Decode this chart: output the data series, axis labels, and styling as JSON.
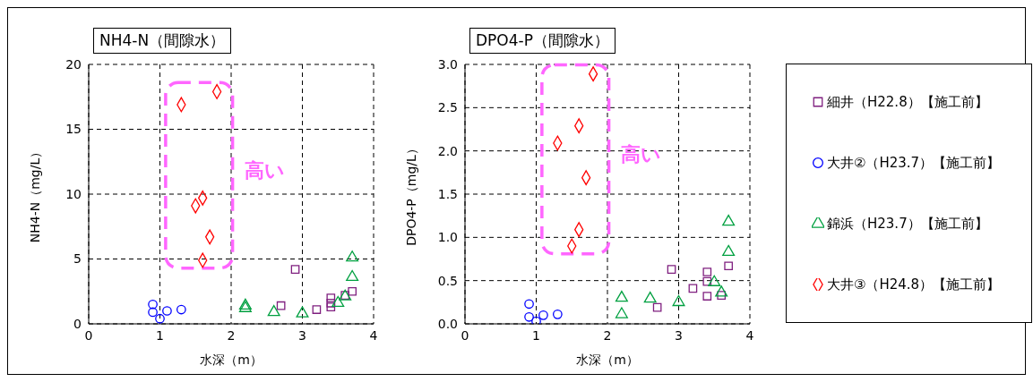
{
  "chart_data": [
    {
      "type": "scatter",
      "title": "NH4-N（間隙水）",
      "xlabel": "水深（m）",
      "ylabel": "NH4-N（mg/L）",
      "xlim": [
        0,
        4
      ],
      "xticks": [
        0,
        1,
        2,
        3,
        4
      ],
      "ylim": [
        0,
        20
      ],
      "yticks": [
        0,
        5,
        10,
        15,
        20
      ],
      "grid": true,
      "legend": false,
      "annotations": [
        "高い"
      ],
      "series": [
        {
          "color": "#7f1f7f",
          "marker": "square",
          "x": [
            2.9,
            2.7,
            3.2,
            3.4,
            3.4,
            3.4,
            3.6,
            3.7
          ],
          "values": [
            4.2,
            1.4,
            1.1,
            2.0,
            1.6,
            1.3,
            2.2,
            2.5
          ]
        },
        {
          "color": "#0000ff",
          "marker": "circle",
          "x": [
            0.9,
            0.9,
            1.0,
            1.1,
            1.3
          ],
          "values": [
            1.5,
            0.9,
            0.4,
            1.0,
            1.1
          ]
        },
        {
          "color": "#00a040",
          "marker": "triangle",
          "x": [
            2.2,
            2.2,
            2.6,
            3.0,
            3.5,
            3.6,
            3.7,
            3.7
          ],
          "values": [
            1.4,
            1.2,
            0.9,
            0.8,
            1.6,
            2.1,
            3.6,
            5.1
          ]
        },
        {
          "color": "#ff0000",
          "marker": "diamond",
          "x": [
            1.3,
            1.8,
            1.6,
            1.5,
            1.7,
            1.6
          ],
          "values": [
            16.9,
            17.9,
            9.7,
            9.1,
            6.7,
            4.9
          ]
        }
      ]
    },
    {
      "type": "scatter",
      "title": "DPO4-P（間隙水）",
      "xlabel": "水深（m）",
      "ylabel": "DPO4-P（mg/L）",
      "xlim": [
        0,
        4
      ],
      "xticks": [
        0,
        1,
        2,
        3,
        4
      ],
      "ylim": [
        0,
        3
      ],
      "yticks": [
        {
          "value": 0,
          "label": "0.0"
        },
        0.5,
        {
          "value": 1,
          "label": "1.0"
        },
        1.5,
        {
          "value": 2,
          "label": "2.0"
        },
        2.5,
        {
          "value": 3,
          "label": "3.0"
        }
      ],
      "grid": true,
      "legend": "right",
      "annotations": [
        "高い"
      ],
      "series": [
        {
          "name": "細井（H22.8）【施工前】",
          "color": "#7f1f7f",
          "marker": "square",
          "x": [
            2.9,
            2.7,
            3.2,
            3.4,
            3.4,
            3.4,
            3.6,
            3.7
          ],
          "values": [
            0.63,
            0.19,
            0.41,
            0.6,
            0.49,
            0.32,
            0.33,
            0.67
          ]
        },
        {
          "name": "大井②（H23.7）【施工前】",
          "color": "#0000ff",
          "marker": "circle",
          "x": [
            0.9,
            0.9,
            1.0,
            1.1,
            1.3
          ],
          "values": [
            0.23,
            0.08,
            0.03,
            0.1,
            0.11
          ]
        },
        {
          "name": "錦浜（H23.7）【施工前】",
          "color": "#00a040",
          "marker": "triangle",
          "x": [
            2.2,
            2.2,
            2.6,
            3.0,
            3.5,
            3.6,
            3.7,
            3.7
          ],
          "values": [
            0.3,
            0.11,
            0.29,
            0.25,
            0.48,
            0.36,
            0.83,
            1.18
          ]
        },
        {
          "name": "大井③（H24.8）【施工前】",
          "color": "#ff0000",
          "marker": "diamond",
          "x": [
            1.8,
            1.6,
            1.3,
            1.7,
            1.6,
            1.5
          ],
          "values": [
            2.89,
            2.29,
            2.09,
            1.69,
            1.09,
            0.9
          ]
        }
      ]
    }
  ]
}
